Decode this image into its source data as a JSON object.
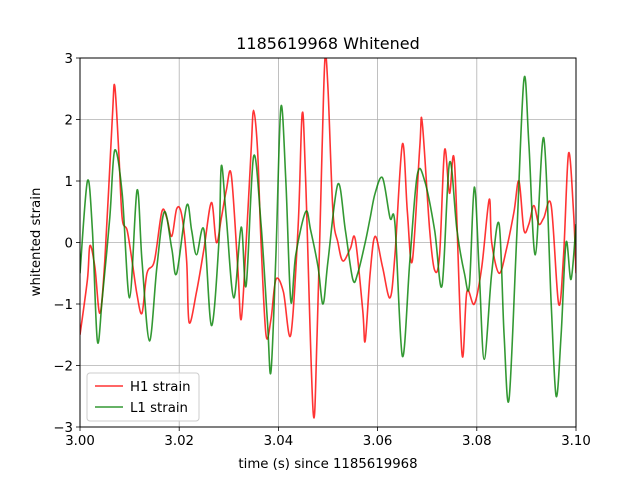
{
  "chart_data": {
    "type": "line",
    "title": "1185619968 Whitened",
    "xlabel": "time (s) since 1185619968",
    "ylabel": "whitented strain",
    "xlim": [
      3.0,
      3.1
    ],
    "ylim": [
      -3,
      3
    ],
    "x_ticks": [
      3.0,
      3.02,
      3.04,
      3.06,
      3.08,
      3.1
    ],
    "x_tick_labels": [
      "3.00",
      "3.02",
      "3.04",
      "3.06",
      "3.08",
      "3.10"
    ],
    "y_ticks": [
      -3,
      -2,
      -1,
      0,
      1,
      2,
      3
    ],
    "y_tick_labels": [
      "−3",
      "−2",
      "−1",
      "0",
      "1",
      "2",
      "3"
    ],
    "grid": true,
    "legend_position": "lower-left",
    "series": [
      {
        "name": "H1 strain",
        "color": "#ff0000",
        "points": [
          [
            3.0,
            -1.5
          ],
          [
            3.0015,
            -0.6
          ],
          [
            3.002,
            -0.05
          ],
          [
            3.003,
            -0.4
          ],
          [
            3.004,
            -1.15
          ],
          [
            3.005,
            -0.3
          ],
          [
            3.0065,
            2.0
          ],
          [
            3.007,
            2.55
          ],
          [
            3.0078,
            1.5
          ],
          [
            3.0085,
            0.4
          ],
          [
            3.0095,
            0.2
          ],
          [
            3.0105,
            -0.3
          ],
          [
            3.0115,
            -0.85
          ],
          [
            3.0125,
            -1.15
          ],
          [
            3.0135,
            -0.5
          ],
          [
            3.015,
            -0.3
          ],
          [
            3.0165,
            0.5
          ],
          [
            3.0175,
            0.4
          ],
          [
            3.0185,
            0.1
          ],
          [
            3.0195,
            0.55
          ],
          [
            3.0205,
            0.45
          ],
          [
            3.0215,
            -0.3
          ],
          [
            3.022,
            -1.3
          ],
          [
            3.0235,
            -0.8
          ],
          [
            3.025,
            -0.1
          ],
          [
            3.0265,
            0.65
          ],
          [
            3.0275,
            0.0
          ],
          [
            3.0285,
            0.4
          ],
          [
            3.0295,
            0.85
          ],
          [
            3.0305,
            1.1
          ],
          [
            3.0318,
            -0.4
          ],
          [
            3.0325,
            -1.25
          ],
          [
            3.0335,
            0.0
          ],
          [
            3.0345,
            1.5
          ],
          [
            3.035,
            2.15
          ],
          [
            3.0358,
            1.5
          ],
          [
            3.0365,
            0.0
          ],
          [
            3.0375,
            -1.5
          ],
          [
            3.0385,
            -1.25
          ],
          [
            3.0395,
            -0.6
          ],
          [
            3.041,
            -0.8
          ],
          [
            3.0425,
            -1.5
          ],
          [
            3.044,
            0.3
          ],
          [
            3.0448,
            2.1
          ],
          [
            3.0455,
            1.0
          ],
          [
            3.047,
            -2.75
          ],
          [
            3.0478,
            -1.5
          ],
          [
            3.0488,
            1.5
          ],
          [
            3.0494,
            3.0
          ],
          [
            3.05,
            2.5
          ],
          [
            3.051,
            0.5
          ],
          [
            3.052,
            0.0
          ],
          [
            3.053,
            -0.3
          ],
          [
            3.0545,
            -0.1
          ],
          [
            3.0555,
            0.05
          ],
          [
            3.057,
            -1.1
          ],
          [
            3.0575,
            -1.6
          ],
          [
            3.0585,
            -0.5
          ],
          [
            3.0595,
            0.1
          ],
          [
            3.061,
            -0.4
          ],
          [
            3.0625,
            -0.9
          ],
          [
            3.0635,
            -0.2
          ],
          [
            3.065,
            1.6
          ],
          [
            3.066,
            0.5
          ],
          [
            3.067,
            -0.3
          ],
          [
            3.0685,
            1.55
          ],
          [
            3.069,
            1.95
          ],
          [
            3.0705,
            0.2
          ],
          [
            3.0715,
            -0.45
          ],
          [
            3.0725,
            -0.2
          ],
          [
            3.0735,
            1.5
          ],
          [
            3.0745,
            0.8
          ],
          [
            3.0755,
            1.3
          ],
          [
            3.077,
            -1.8
          ],
          [
            3.078,
            -0.8
          ],
          [
            3.0795,
            -1.0
          ],
          [
            3.081,
            -0.4
          ],
          [
            3.0825,
            0.7
          ],
          [
            3.083,
            0.0
          ],
          [
            3.0845,
            -0.5
          ],
          [
            3.086,
            -0.1
          ],
          [
            3.0875,
            0.5
          ],
          [
            3.0885,
            1.0
          ],
          [
            3.0895,
            0.2
          ],
          [
            3.0905,
            0.3
          ],
          [
            3.0915,
            0.6
          ],
          [
            3.0925,
            0.3
          ],
          [
            3.0935,
            0.4
          ],
          [
            3.095,
            0.6
          ],
          [
            3.0965,
            -1.0
          ],
          [
            3.0975,
            -0.2
          ],
          [
            3.0985,
            1.45
          ],
          [
            3.0995,
            0.5
          ],
          [
            3.1,
            -0.5
          ]
        ]
      },
      {
        "name": "L1 strain",
        "color": "#008000",
        "points": [
          [
            3.0,
            -0.5
          ],
          [
            3.0015,
            1.0
          ],
          [
            3.0025,
            0.2
          ],
          [
            3.0035,
            -1.6
          ],
          [
            3.0045,
            -0.9
          ],
          [
            3.006,
            0.4
          ],
          [
            3.007,
            1.5
          ],
          [
            3.0085,
            0.8
          ],
          [
            3.01,
            -0.9
          ],
          [
            3.0115,
            0.85
          ],
          [
            3.0125,
            -0.3
          ],
          [
            3.014,
            -1.6
          ],
          [
            3.0155,
            -0.4
          ],
          [
            3.017,
            0.5
          ],
          [
            3.0185,
            -0.1
          ],
          [
            3.0195,
            -0.5
          ],
          [
            3.0215,
            0.6
          ],
          [
            3.0225,
            0.2
          ],
          [
            3.0235,
            -0.2
          ],
          [
            3.025,
            0.2
          ],
          [
            3.0265,
            -1.35
          ],
          [
            3.028,
            0.0
          ],
          [
            3.0285,
            1.25
          ],
          [
            3.0295,
            0.4
          ],
          [
            3.031,
            -0.9
          ],
          [
            3.0325,
            0.25
          ],
          [
            3.0335,
            -0.7
          ],
          [
            3.035,
            1.4
          ],
          [
            3.0365,
            0.3
          ],
          [
            3.0378,
            -1.3
          ],
          [
            3.0385,
            -2.1
          ],
          [
            3.0395,
            -0.2
          ],
          [
            3.0405,
            2.2
          ],
          [
            3.0415,
            1.0
          ],
          [
            3.0425,
            -0.95
          ],
          [
            3.0435,
            -0.2
          ],
          [
            3.0455,
            0.5
          ],
          [
            3.0465,
            0.2
          ],
          [
            3.048,
            -0.4
          ],
          [
            3.049,
            -1.0
          ],
          [
            3.05,
            -0.3
          ],
          [
            3.052,
            0.95
          ],
          [
            3.0535,
            0.2
          ],
          [
            3.055,
            -0.6
          ],
          [
            3.056,
            -0.5
          ],
          [
            3.0575,
            0.0
          ],
          [
            3.0585,
            0.4
          ],
          [
            3.0595,
            0.8
          ],
          [
            3.061,
            1.05
          ],
          [
            3.0625,
            0.4
          ],
          [
            3.0635,
            0.3
          ],
          [
            3.065,
            -1.85
          ],
          [
            3.0665,
            -0.3
          ],
          [
            3.068,
            1.1
          ],
          [
            3.0695,
            1.0
          ],
          [
            3.0715,
            0.2
          ],
          [
            3.073,
            -0.7
          ],
          [
            3.0745,
            1.3
          ],
          [
            3.076,
            0.2
          ],
          [
            3.0775,
            -0.5
          ],
          [
            3.0785,
            -0.7
          ],
          [
            3.0795,
            0.9
          ],
          [
            3.0805,
            -0.5
          ],
          [
            3.0815,
            -1.9
          ],
          [
            3.083,
            -0.5
          ],
          [
            3.0845,
            0.3
          ],
          [
            3.0855,
            -1.5
          ],
          [
            3.0865,
            -2.55
          ],
          [
            3.088,
            0.0
          ],
          [
            3.0895,
            2.65
          ],
          [
            3.0905,
            1.6
          ],
          [
            3.0918,
            -0.2
          ],
          [
            3.0935,
            1.7
          ],
          [
            3.095,
            -1.0
          ],
          [
            3.096,
            -2.5
          ],
          [
            3.097,
            -1.5
          ],
          [
            3.098,
            0.0
          ],
          [
            3.099,
            -0.6
          ],
          [
            3.1,
            0.3
          ]
        ]
      }
    ]
  }
}
